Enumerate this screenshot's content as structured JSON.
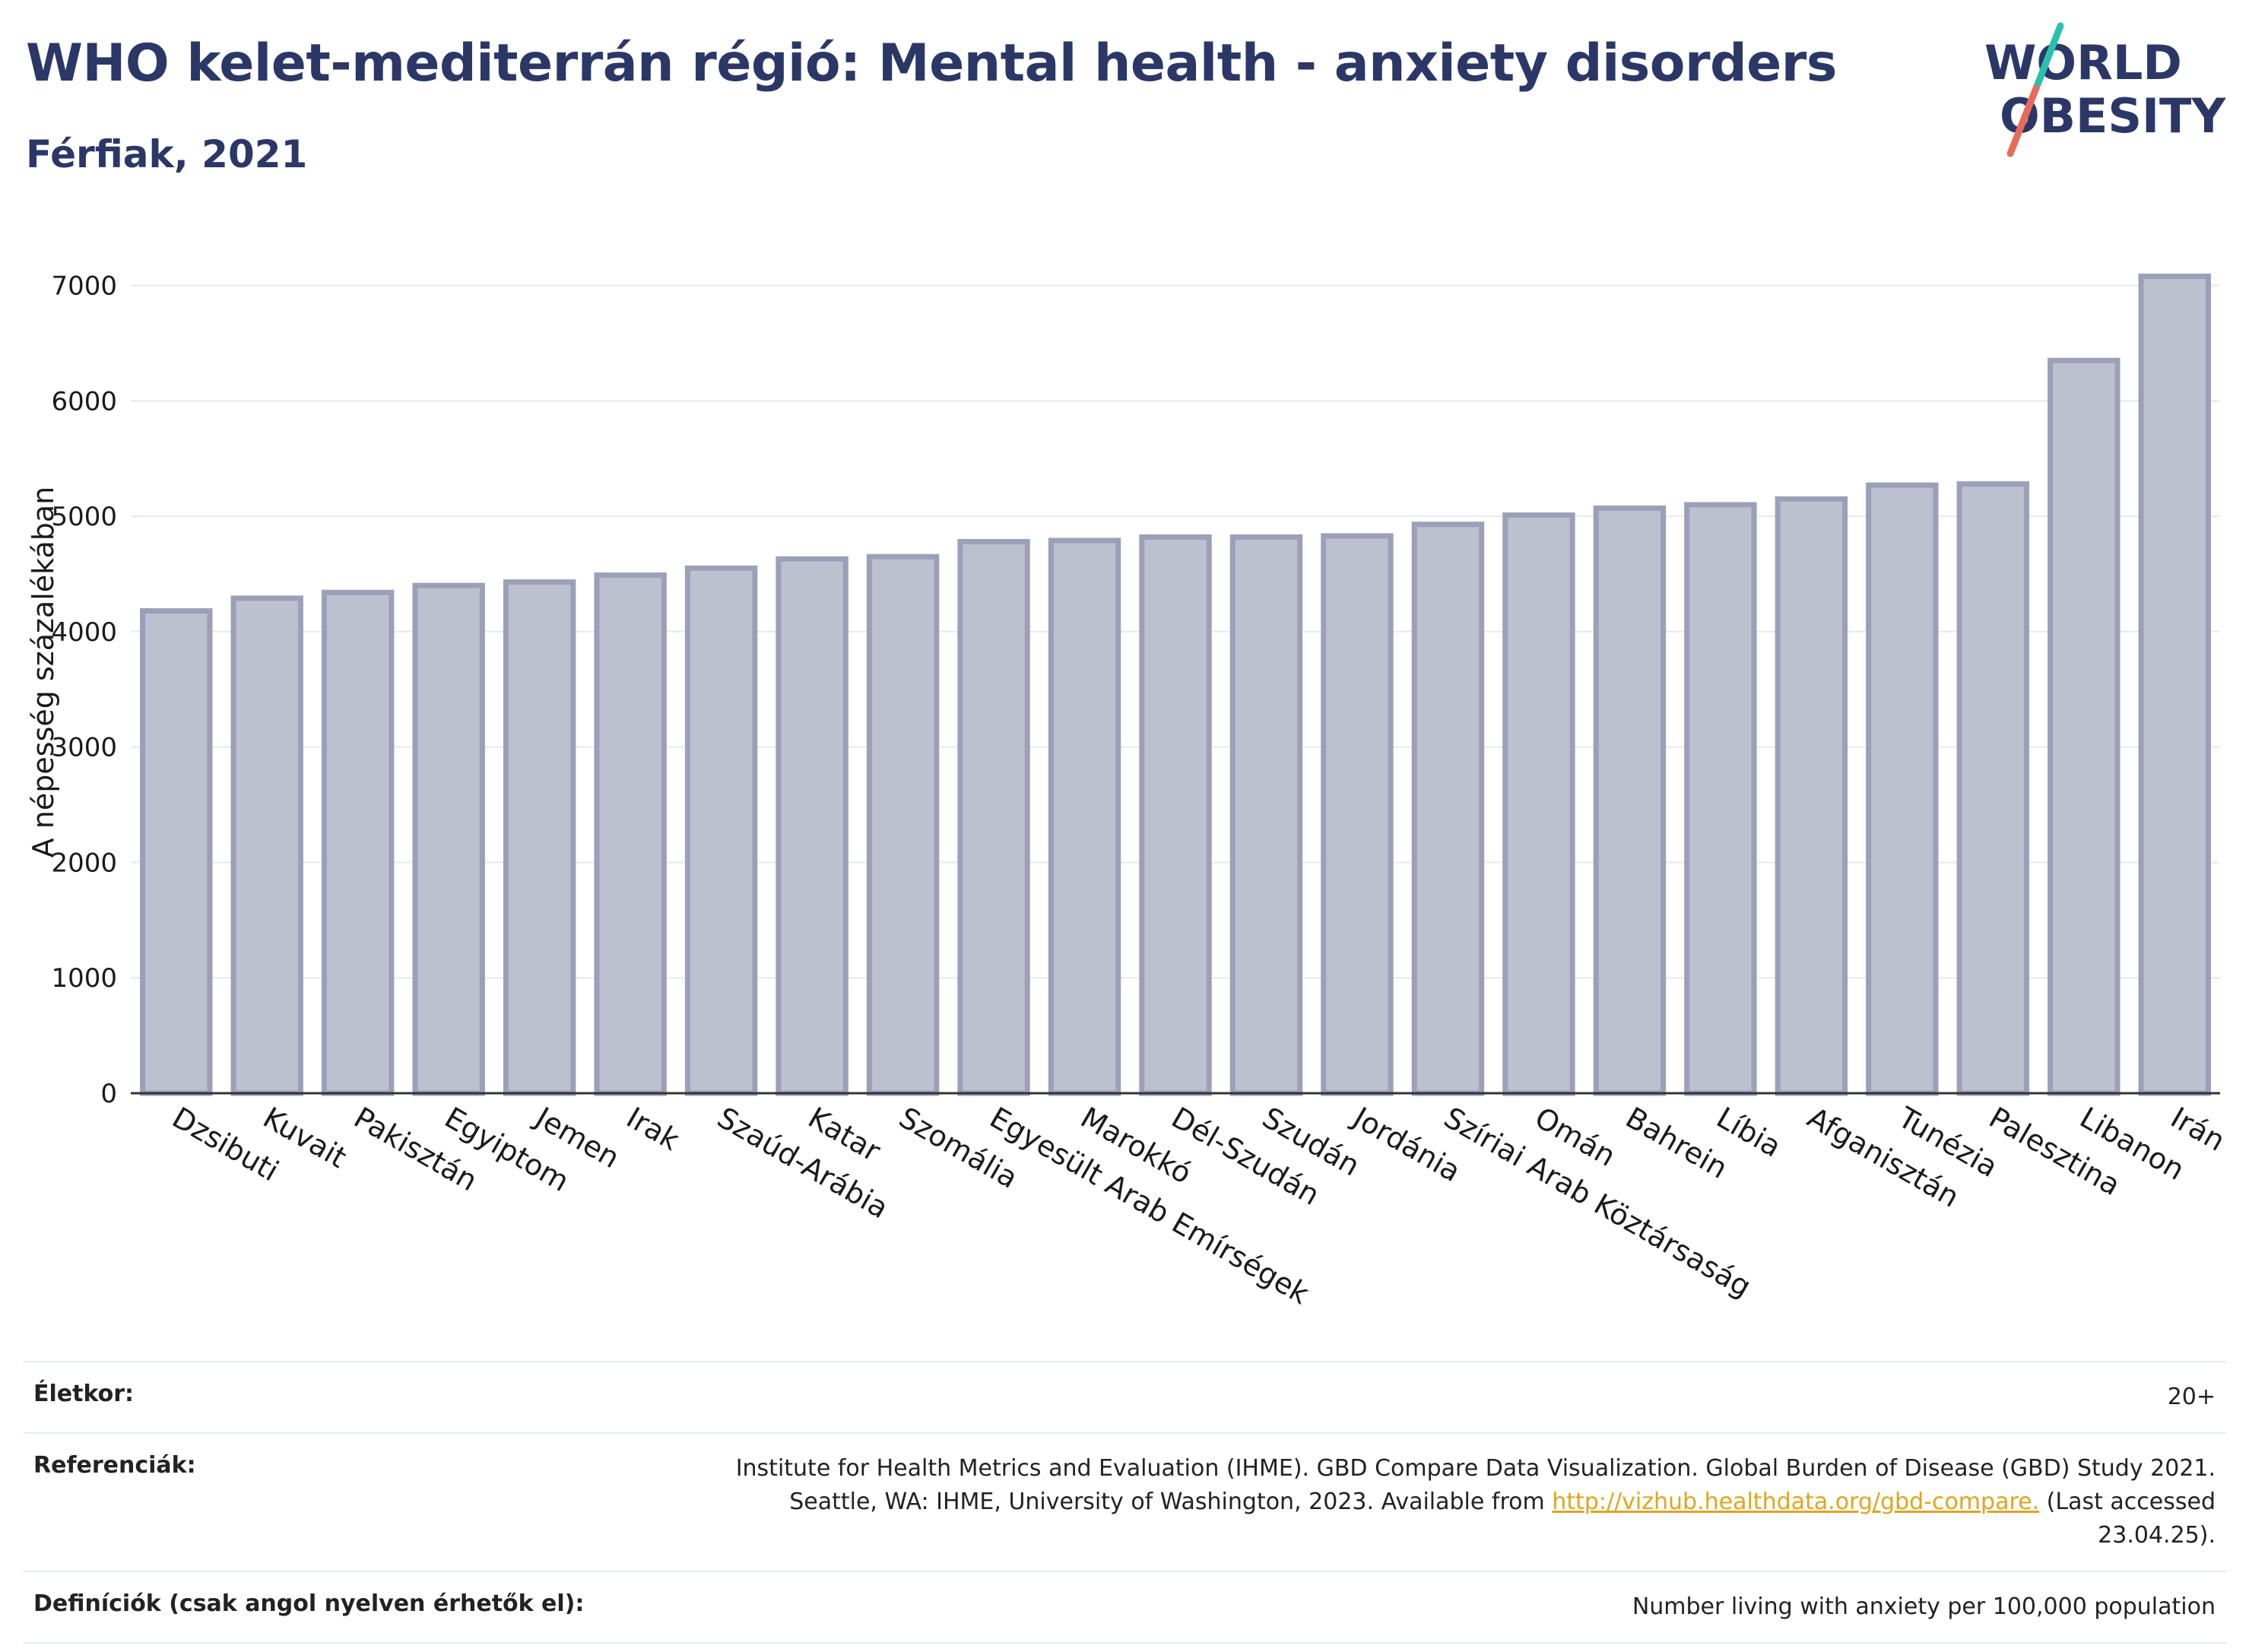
{
  "header": {
    "title": "WHO kelet-mediterrán régió: Mental health - anxiety disorders",
    "subtitle": "Férfiak, 2021"
  },
  "logo": {
    "line1": "WORLD",
    "line2": "OBESITY",
    "colors": {
      "text": "#2b3766",
      "slash_teal": "#2bbfb0",
      "slash_coral": "#e86b5a"
    }
  },
  "chart_data": {
    "type": "bar",
    "title": "WHO kelet-mediterrán régió: Mental health - anxiety disorders",
    "subtitle": "Férfiak, 2021",
    "xlabel": "",
    "ylabel": "A népesség százalékában",
    "ylim": [
      0,
      7300
    ],
    "yticks": [
      0,
      1000,
      2000,
      3000,
      4000,
      5000,
      6000,
      7000
    ],
    "grid": true,
    "bar_color": "#bcc0cf",
    "bar_edge_color": "#9ba0b8",
    "categories": [
      "Dzsibuti",
      "Kuvait",
      "Pakisztán",
      "Egyiptom",
      "Jemen",
      "Irak",
      "Szaúd-Arábia",
      "Katar",
      "Szomália",
      "Egyesült Arab Emírségek",
      "Marokkó",
      "Dél-Szudán",
      "Szudán",
      "Jordánia",
      "Szíriai Arab Köztársaság",
      "Omán",
      "Bahrein",
      "Líbia",
      "Afganisztán",
      "Tunézia",
      "Palesztina",
      "Libanon",
      "Irán"
    ],
    "values": [
      4180,
      4290,
      4340,
      4400,
      4430,
      4490,
      4550,
      4630,
      4650,
      4780,
      4790,
      4820,
      4820,
      4830,
      4930,
      5010,
      5070,
      5100,
      5150,
      5270,
      5280,
      6350,
      7080
    ]
  },
  "info": {
    "age_label": "Életkor:",
    "age_value": "20+",
    "refs_label": "Referenciák:",
    "refs_text_1": "Institute for Health Metrics and Evaluation (IHME). GBD Compare Data Visualization. Global Burden of Disease (GBD) Study 2021.",
    "refs_text_2": "Seattle, WA: IHME, University of Washington, 2023. Available from",
    "refs_link": "http://vizhub.healthdata.org/gbd-compare.",
    "refs_text_3": "(Last accessed",
    "refs_text_4": "23.04.25).",
    "defs_label": "Definíciók (csak angol nyelven érhetők el):",
    "defs_value": "Number living with anxiety per 100,000 population"
  }
}
